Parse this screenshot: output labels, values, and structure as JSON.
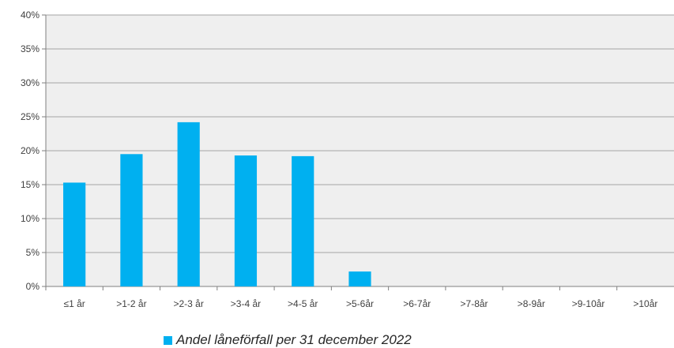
{
  "chart_data": {
    "type": "bar",
    "categories": [
      "≤1 år",
      ">1-2 år",
      ">2-3 år",
      ">3-4 år",
      ">4-5 år",
      ">5-6år",
      ">6-7år",
      ">7-8år",
      ">8-9år",
      ">9-10år",
      ">10år"
    ],
    "series": [
      {
        "name": "Andel låneförfall per 31 december 2022",
        "values": [
          15.3,
          19.5,
          24.2,
          19.3,
          19.2,
          2.2,
          0,
          0,
          0,
          0,
          0
        ]
      }
    ],
    "ylim": [
      0,
      40
    ],
    "yticks": [
      "0%",
      "5%",
      "10%",
      "15%",
      "20%",
      "25%",
      "30%",
      "35%",
      "40%"
    ],
    "grid": true,
    "legend_position": "bottom",
    "colors": {
      "bar": "#00B0F0",
      "plot_background": "#EFEFEF",
      "gridline": "#A6A6A6",
      "axis": "#7F7F7F",
      "text": "#404040"
    }
  }
}
